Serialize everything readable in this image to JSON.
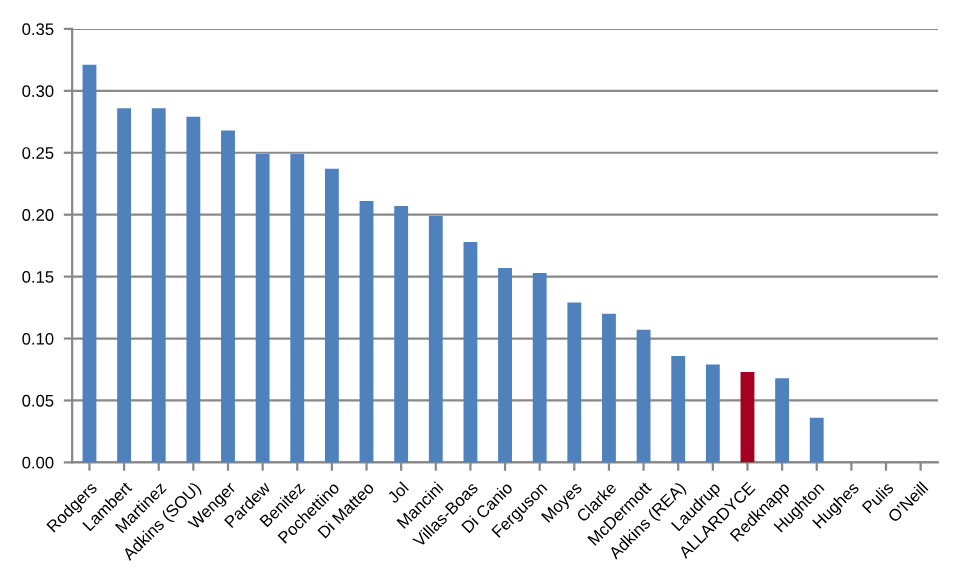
{
  "chart_data": {
    "type": "bar",
    "categories": [
      "Rodgers",
      "Lambert",
      "Martinez",
      "Adkins (SOU)",
      "Wenger",
      "Pardew",
      "Benitez",
      "Pochettino",
      "Di Matteo",
      "Jol",
      "Mancini",
      "Villas-Boas",
      "Di Canio",
      "Ferguson",
      "Moyes",
      "Clarke",
      "McDermott",
      "Adkins (REA)",
      "Laudrup",
      "ALLARDYCE",
      "Redknapp",
      "Hughton",
      "Hughes",
      "Pulis",
      "O'Neill"
    ],
    "values": [
      0.321,
      0.286,
      0.286,
      0.279,
      0.268,
      0.249,
      0.249,
      0.237,
      0.211,
      0.207,
      0.199,
      0.178,
      0.157,
      0.153,
      0.129,
      0.12,
      0.107,
      0.086,
      0.079,
      0.073,
      0.068,
      0.036,
      0,
      0,
      0
    ],
    "colors": [
      "#4f81bd",
      "#4f81bd",
      "#4f81bd",
      "#4f81bd",
      "#4f81bd",
      "#4f81bd",
      "#4f81bd",
      "#4f81bd",
      "#4f81bd",
      "#4f81bd",
      "#4f81bd",
      "#4f81bd",
      "#4f81bd",
      "#4f81bd",
      "#4f81bd",
      "#4f81bd",
      "#4f81bd",
      "#4f81bd",
      "#4f81bd",
      "#a50021",
      "#4f81bd",
      "#4f81bd",
      "#4f81bd",
      "#4f81bd",
      "#4f81bd"
    ],
    "ylim": [
      0,
      0.35
    ],
    "yticks": [
      {
        "value": 0,
        "label": "0.00"
      },
      {
        "value": 0.05,
        "label": "0.05"
      },
      {
        "value": 0.1,
        "label": "0.10"
      },
      {
        "value": 0.15,
        "label": "0.15"
      },
      {
        "value": 0.2,
        "label": "0.20"
      },
      {
        "value": 0.25,
        "label": "0.25"
      },
      {
        "value": 0.3,
        "label": "0.30"
      },
      {
        "value": 0.35,
        "label": "0.35"
      }
    ],
    "grid": "y",
    "legend": false
  }
}
